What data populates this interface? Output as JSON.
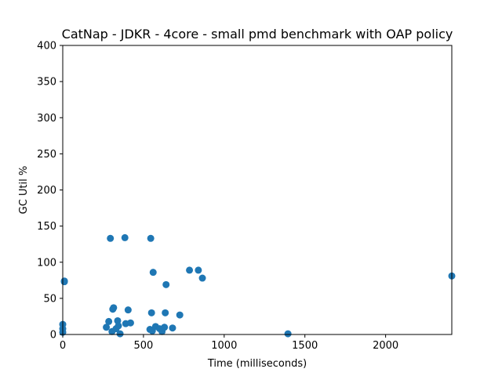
{
  "chart_data": {
    "type": "scatter",
    "title": "CatNap - JDKR - 4core -  small pmd benchmark with OAP policy",
    "xlabel": "Time (milliseconds)",
    "ylabel": "GC Util %",
    "xlim": [
      0,
      2410
    ],
    "ylim": [
      0,
      400
    ],
    "xticks": [
      0,
      500,
      1000,
      1500,
      2000
    ],
    "yticks": [
      0,
      50,
      100,
      150,
      200,
      250,
      300,
      350,
      400
    ],
    "grid": false,
    "marker_color": "#1f77b4",
    "series": [
      {
        "x": [
          0,
          0,
          0,
          10,
          10,
          270,
          285,
          295,
          305,
          310,
          315,
          330,
          340,
          345,
          355,
          385,
          390,
          405,
          420,
          540,
          545,
          550,
          555,
          560,
          575,
          600,
          615,
          630,
          635,
          640,
          680,
          725,
          785,
          840,
          865,
          1395,
          2410
        ],
        "y": [
          14,
          8,
          3,
          74,
          73,
          10,
          18,
          133,
          4,
          35,
          37,
          8,
          19,
          12,
          1,
          134,
          15,
          34,
          16,
          7,
          133,
          30,
          5,
          86,
          11,
          8,
          4,
          10,
          30,
          69,
          9,
          27,
          89,
          89,
          78,
          1,
          81
        ]
      }
    ]
  }
}
